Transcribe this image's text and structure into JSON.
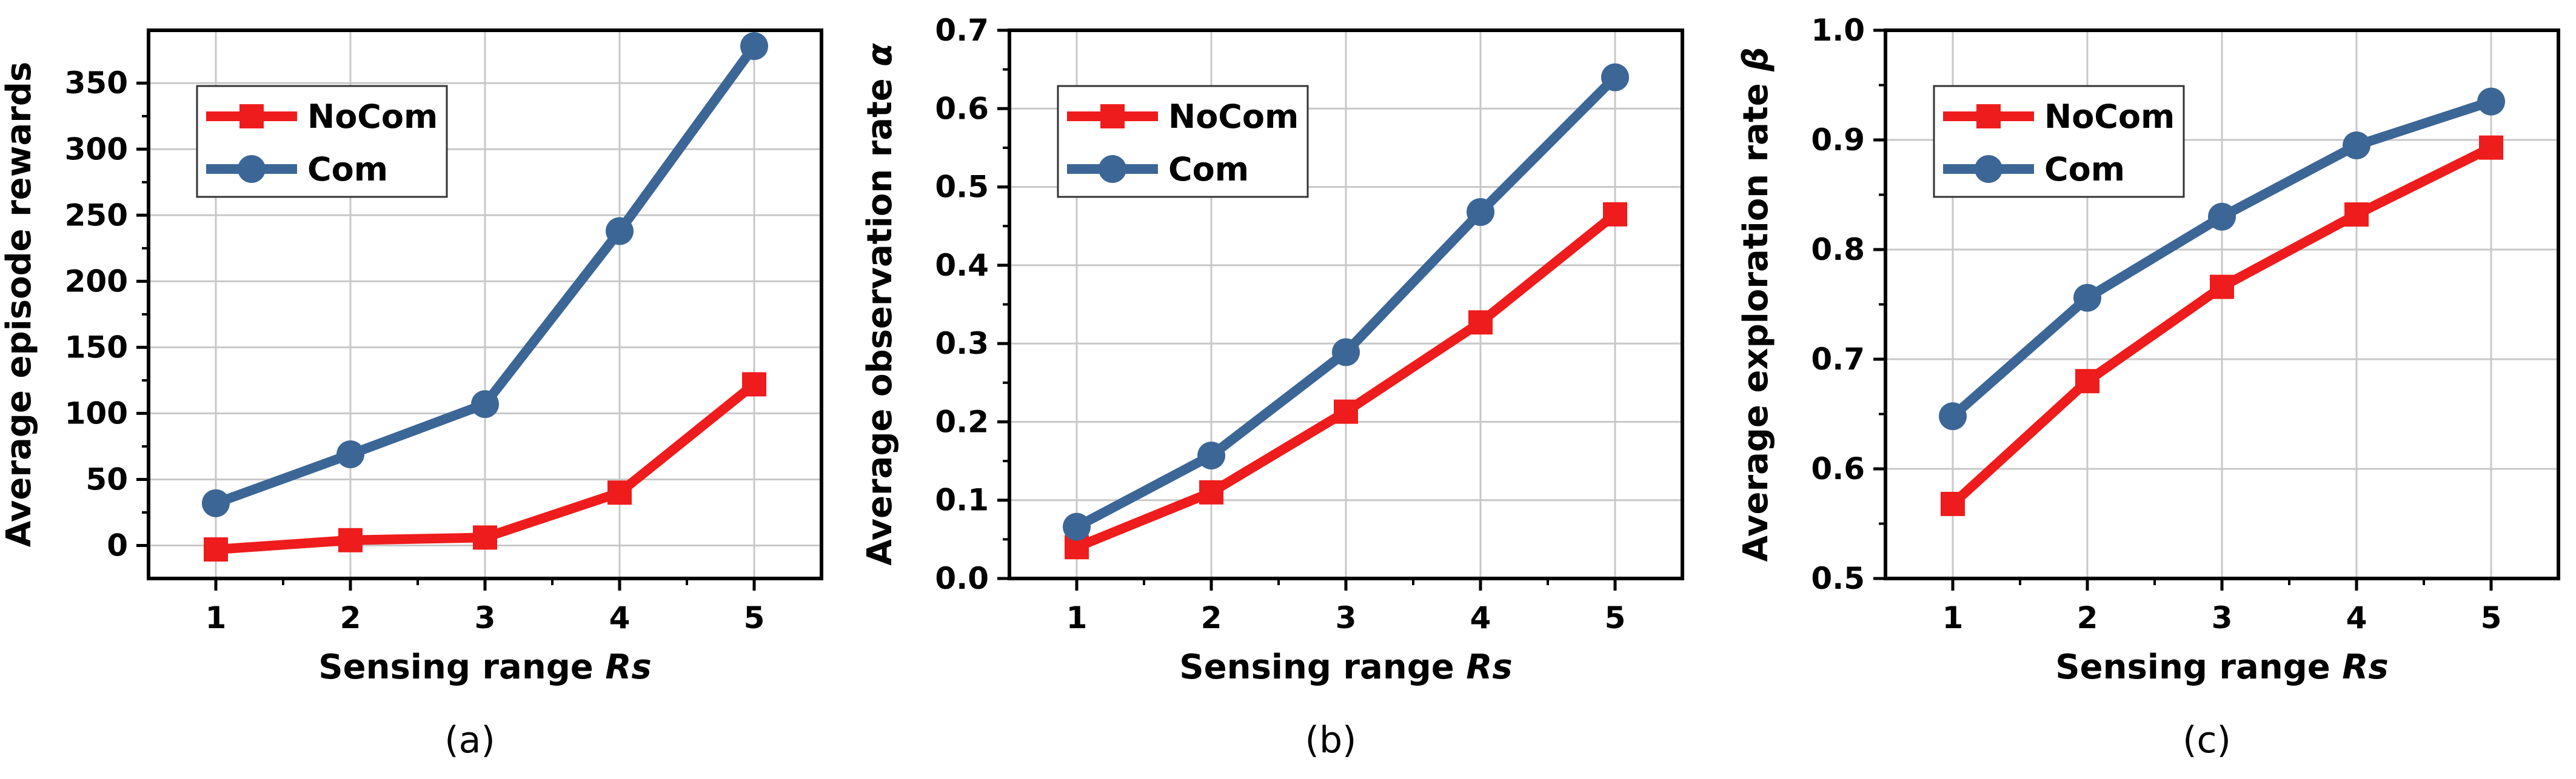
{
  "chart_data": [
    {
      "type": "line",
      "panel_label": "(a)",
      "xlabel": "Sensing range",
      "xlabel_italic": "Rs",
      "ylabel": "Average episode rewards",
      "ylabel_symbol": "",
      "x": [
        1,
        2,
        3,
        4,
        5
      ],
      "xlim": [
        0.5,
        5.5
      ],
      "ylim": [
        -25,
        390
      ],
      "yticks": [
        0,
        50,
        100,
        150,
        200,
        250,
        300,
        350
      ],
      "ytick_labels": [
        "0",
        "50",
        "100",
        "150",
        "200",
        "250",
        "300",
        "350"
      ],
      "series": [
        {
          "name": "NoCom",
          "color": "#ee1c1c",
          "marker": "square",
          "values": [
            -3,
            4,
            6,
            40,
            122
          ]
        },
        {
          "name": "Com",
          "color": "#3c6695",
          "marker": "circle",
          "values": [
            32,
            69,
            107,
            238,
            378
          ]
        }
      ],
      "grid": true,
      "legend": "top-left"
    },
    {
      "type": "line",
      "panel_label": "(b)",
      "xlabel": "Sensing range",
      "xlabel_italic": "Rs",
      "ylabel": "Average observation rate",
      "ylabel_symbol": "α",
      "x": [
        1,
        2,
        3,
        4,
        5
      ],
      "xlim": [
        0.5,
        5.5
      ],
      "ylim": [
        0.0,
        0.7
      ],
      "yticks": [
        0.0,
        0.1,
        0.2,
        0.3,
        0.4,
        0.5,
        0.6,
        0.7
      ],
      "ytick_labels": [
        "0.0",
        "0.1",
        "0.2",
        "0.3",
        "0.4",
        "0.5",
        "0.6",
        "0.7"
      ],
      "series": [
        {
          "name": "NoCom",
          "color": "#ee1c1c",
          "marker": "square",
          "values": [
            0.04,
            0.11,
            0.213,
            0.327,
            0.465
          ]
        },
        {
          "name": "Com",
          "color": "#3c6695",
          "marker": "circle",
          "values": [
            0.066,
            0.157,
            0.289,
            0.468,
            0.64
          ]
        }
      ],
      "grid": true,
      "legend": "top-left"
    },
    {
      "type": "line",
      "panel_label": "(c)",
      "xlabel": "Sensing range",
      "xlabel_italic": "Rs",
      "ylabel": "Average exploration rate",
      "ylabel_symbol": "β",
      "x": [
        1,
        2,
        3,
        4,
        5
      ],
      "xlim": [
        0.5,
        5.5
      ],
      "ylim": [
        0.5,
        1.0
      ],
      "yticks": [
        0.5,
        0.6,
        0.7,
        0.8,
        0.9,
        1.0
      ],
      "ytick_labels": [
        "0.5",
        "0.6",
        "0.7",
        "0.8",
        "0.9",
        "1.0"
      ],
      "series": [
        {
          "name": "NoCom",
          "color": "#ee1c1c",
          "marker": "square",
          "values": [
            0.568,
            0.68,
            0.766,
            0.832,
            0.893
          ]
        },
        {
          "name": "Com",
          "color": "#3c6695",
          "marker": "circle",
          "values": [
            0.648,
            0.756,
            0.83,
            0.895,
            0.935
          ]
        }
      ],
      "grid": true,
      "legend": "top-left"
    }
  ]
}
